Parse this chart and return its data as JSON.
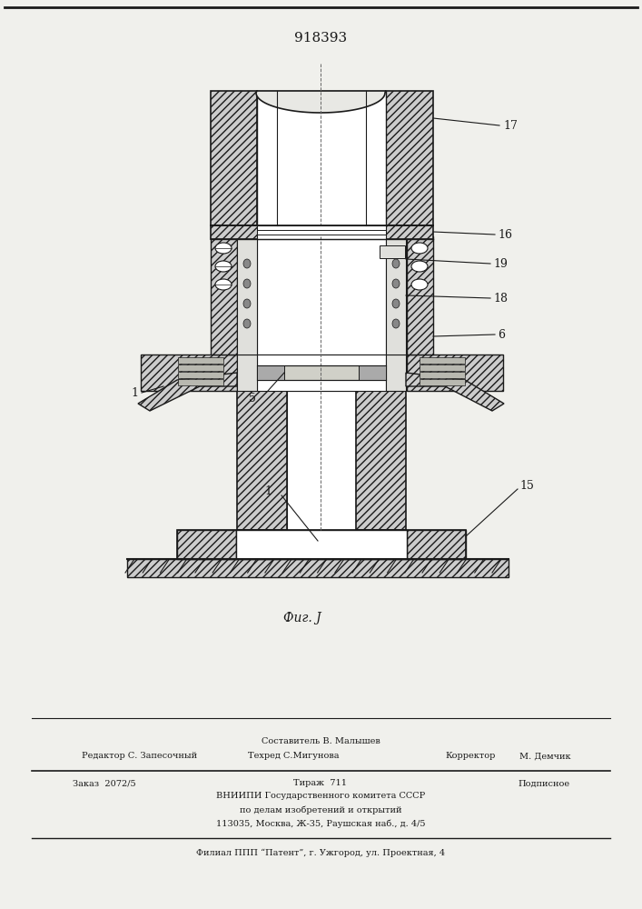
{
  "patent_number": "918393",
  "fig_label": "Фиг. J",
  "bg_color": "#f0f0ec",
  "dark": "#1a1a1a",
  "hatch_gray": "#888888",
  "footer": {
    "sestavitel_label": "Составитель В. Малышев",
    "redaktor_label": "Редактор С. Запесочный",
    "tehred_label": "Техред С.Мигунова",
    "korrektor_label": "Корректор",
    "korrektor_name": "М. Демчик",
    "zakaz": "Заказ  2072/5",
    "tirazh": "Тираж  711",
    "podpisnoe": "Подписное",
    "vniiipi_line1": "ВНИИПИ Государственного комитета СССР",
    "vniiipi_line2": "по делам изобретений и открытий",
    "vniiipi_line3": "113035, Москва, Ж-35, Раушская наб., д. 4/5",
    "filial": "Филиал ППП “Патент”, г. Ужгород, ул. Проектная, 4"
  }
}
